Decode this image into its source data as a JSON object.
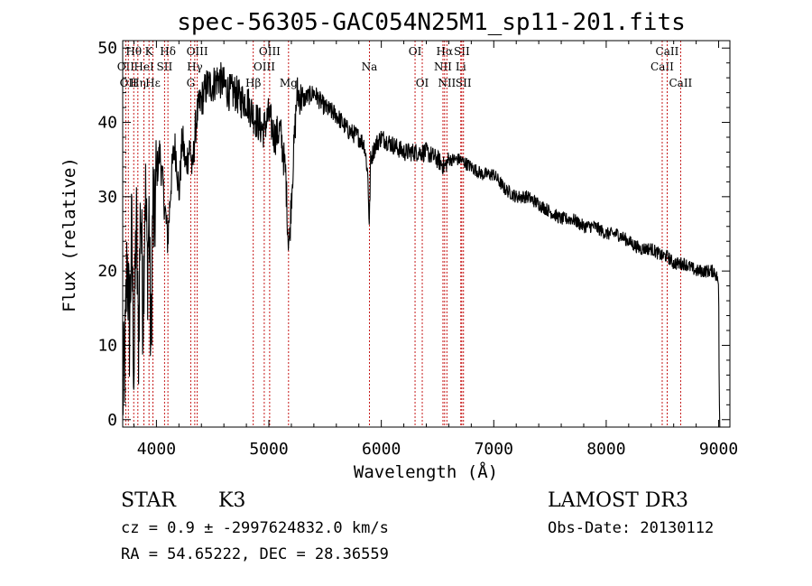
{
  "chart_data": {
    "type": "line",
    "title": "spec-56305-GAC054N25M1_sp11-201.fits",
    "xlabel": "Wavelength (Å)",
    "ylabel": "Flux (relative)",
    "xlim": [
      3700,
      9100
    ],
    "ylim": [
      -1,
      51
    ],
    "xticks": [
      4000,
      5000,
      6000,
      7000,
      8000,
      9000
    ],
    "yticks": [
      0,
      10,
      20,
      30,
      40,
      50
    ],
    "series": [
      {
        "name": "flux",
        "x": [
          3700,
          3720,
          3740,
          3760,
          3780,
          3800,
          3820,
          3840,
          3860,
          3880,
          3900,
          3920,
          3935,
          3950,
          3968,
          3980,
          4000,
          4030,
          4060,
          4101,
          4130,
          4160,
          4180,
          4200,
          4230,
          4260,
          4300,
          4320,
          4340,
          4360,
          4380,
          4400,
          4450,
          4500,
          4550,
          4600,
          4650,
          4700,
          4750,
          4800,
          4861,
          4900,
          4950,
          5000,
          5050,
          5100,
          5150,
          5170,
          5184,
          5200,
          5250,
          5300,
          5400,
          5500,
          5600,
          5700,
          5800,
          5850,
          5880,
          5893,
          5905,
          5950,
          6000,
          6100,
          6200,
          6300,
          6400,
          6500,
          6563,
          6600,
          6700,
          6800,
          6900,
          7000,
          7100,
          7200,
          7300,
          7400,
          7500,
          7600,
          7700,
          7800,
          7900,
          8000,
          8100,
          8200,
          8300,
          8400,
          8498,
          8542,
          8600,
          8662,
          8700,
          8800,
          8900,
          8960,
          8990,
          9000,
          9005,
          9010
        ],
        "y": [
          3,
          8,
          22,
          12,
          25,
          6,
          28,
          10,
          30,
          14,
          32,
          20,
          28,
          8,
          30,
          25,
          33,
          36,
          31,
          24,
          32,
          37,
          35,
          30,
          38,
          34,
          37,
          33,
          38,
          41,
          42,
          43,
          45,
          45,
          46,
          45,
          44,
          44,
          43,
          43,
          41,
          40,
          39,
          41,
          38,
          39,
          33,
          25,
          24,
          30,
          44,
          43,
          44,
          42,
          41,
          39,
          38,
          37,
          33,
          26,
          35,
          37,
          38,
          37,
          36,
          36,
          36,
          35,
          34,
          35,
          35,
          34,
          33,
          33,
          31,
          30,
          30,
          29,
          28,
          27,
          27,
          26,
          26,
          25,
          25,
          24,
          23,
          23,
          22,
          22,
          21,
          21,
          21,
          20,
          20,
          20,
          19,
          18,
          4,
          -1
        ]
      }
    ],
    "line_markers": [
      {
        "wl": 3727,
        "label": "OII",
        "row": 2
      },
      {
        "wl": 3750,
        "label": "OII",
        "row": 3
      },
      {
        "wl": 3798,
        "label": "Hθ",
        "row": 1
      },
      {
        "wl": 3835,
        "label": "Hη",
        "row": 3
      },
      {
        "wl": 3889,
        "label": "HeI",
        "row": 2
      },
      {
        "wl": 3934,
        "label": "K",
        "row": 1
      },
      {
        "wl": 3969,
        "label": "Hε",
        "row": 3
      },
      {
        "wl": 4072,
        "label": "SII",
        "row": 2
      },
      {
        "wl": 4102,
        "label": "Hδ",
        "row": 1
      },
      {
        "wl": 4305,
        "label": "G",
        "row": 3
      },
      {
        "wl": 4341,
        "label": "Hγ",
        "row": 2
      },
      {
        "wl": 4363,
        "label": "OIII",
        "row": 1
      },
      {
        "wl": 4861,
        "label": "Hβ",
        "row": 3
      },
      {
        "wl": 4959,
        "label": "OIII",
        "row": 2
      },
      {
        "wl": 5007,
        "label": "OIII",
        "row": 1
      },
      {
        "wl": 5175,
        "label": "Mg",
        "row": 3
      },
      {
        "wl": 5894,
        "label": "Na",
        "row": 2
      },
      {
        "wl": 6300,
        "label": "OI",
        "row": 1
      },
      {
        "wl": 6364,
        "label": "OI",
        "row": 3
      },
      {
        "wl": 6548,
        "label": "NII",
        "row": 2
      },
      {
        "wl": 6563,
        "label": "Hα",
        "row": 1
      },
      {
        "wl": 6583,
        "label": "NII",
        "row": 3
      },
      {
        "wl": 6707,
        "label": "Li",
        "row": 2
      },
      {
        "wl": 6716,
        "label": "SII",
        "row": 1
      },
      {
        "wl": 6731,
        "label": "SII",
        "row": 3
      },
      {
        "wl": 8498,
        "label": "CaII",
        "row": 2
      },
      {
        "wl": 8542,
        "label": "CaII",
        "row": 1
      },
      {
        "wl": 8662,
        "label": "CaII",
        "row": 3
      }
    ]
  },
  "info": {
    "object_class": "STAR",
    "subclass": "K3",
    "survey": "LAMOST DR3",
    "redshift_line": "cz = 0.9 ± -2997624832.0 km/s",
    "obs_date": "Obs-Date: 20130112",
    "coords": "RA =  54.65222, DEC =  28.36559"
  }
}
